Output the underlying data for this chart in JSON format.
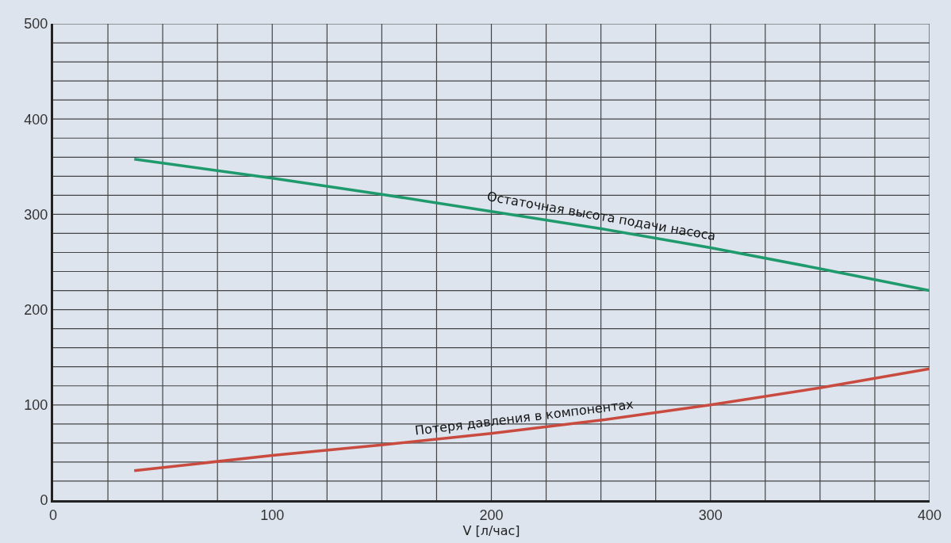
{
  "chart_data": {
    "type": "line",
    "xlabel": "V [л/час]",
    "series": [
      {
        "color": "#1f9a6c",
        "x": [
          37,
          100,
          150,
          200,
          250,
          300,
          350,
          400
        ],
        "values": [
          358,
          338,
          321,
          303,
          285,
          265,
          243,
          220
        ]
      },
      {
        "color": "#c94a3e",
        "x": [
          37,
          100,
          150,
          200,
          250,
          300,
          350,
          400
        ],
        "values": [
          31,
          47,
          58,
          70,
          84,
          100,
          118,
          138
        ]
      }
    ],
    "annotations": [
      {
        "text": "Остаточная высота подачи насоса",
        "x": 250,
        "y": 285
      },
      {
        "text": "Потеря давления в компонентах",
        "x": 215,
        "y": 74
      }
    ],
    "xlim": [
      0,
      400
    ],
    "ylim": [
      0,
      500
    ],
    "xticks": [
      0,
      100,
      200,
      300,
      400
    ],
    "yticks": [
      0,
      100,
      200,
      300,
      400,
      500
    ],
    "grid": true,
    "line_style": "solid",
    "marker": "none"
  }
}
